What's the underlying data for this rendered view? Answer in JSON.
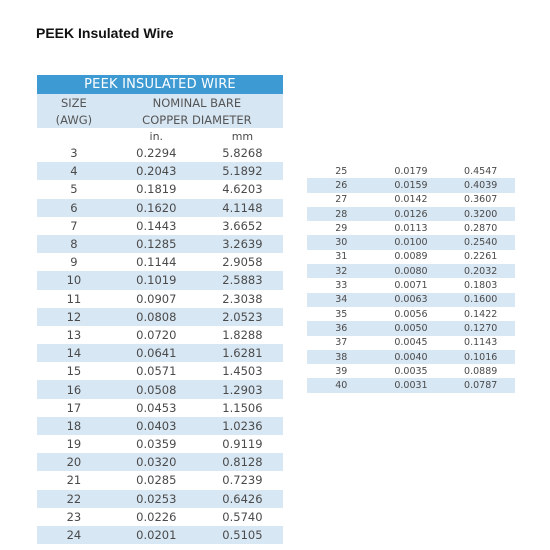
{
  "page_title": "PEEK Insulated Wire",
  "table": {
    "banner": "PEEK INSULATED WIRE",
    "size_header": [
      "SIZE",
      "(AWG)"
    ],
    "diameter_header": [
      "NOMINAL BARE",
      "COPPER DIAMETER"
    ],
    "unit_in": "in.",
    "unit_mm": "mm",
    "rows_left": [
      [
        "3",
        "0.2294",
        "5.8268"
      ],
      [
        "4",
        "0.2043",
        "5.1892"
      ],
      [
        "5",
        "0.1819",
        "4.6203"
      ],
      [
        "6",
        "0.1620",
        "4.1148"
      ],
      [
        "7",
        "0.1443",
        "3.6652"
      ],
      [
        "8",
        "0.1285",
        "3.2639"
      ],
      [
        "9",
        "0.1144",
        "2.9058"
      ],
      [
        "10",
        "0.1019",
        "2.5883"
      ],
      [
        "11",
        "0.0907",
        "2.3038"
      ],
      [
        "12",
        "0.0808",
        "2.0523"
      ],
      [
        "13",
        "0.0720",
        "1.8288"
      ],
      [
        "14",
        "0.0641",
        "1.6281"
      ],
      [
        "15",
        "0.0571",
        "1.4503"
      ],
      [
        "16",
        "0.0508",
        "1.2903"
      ],
      [
        "17",
        "0.0453",
        "1.1506"
      ],
      [
        "18",
        "0.0403",
        "1.0236"
      ],
      [
        "19",
        "0.0359",
        "0.9119"
      ],
      [
        "20",
        "0.0320",
        "0.8128"
      ],
      [
        "21",
        "0.0285",
        "0.7239"
      ],
      [
        "22",
        "0.0253",
        "0.6426"
      ],
      [
        "23",
        "0.0226",
        "0.5740"
      ],
      [
        "24",
        "0.0201",
        "0.5105"
      ]
    ],
    "rows_right": [
      [
        "25",
        "0.0179",
        "0.4547"
      ],
      [
        "26",
        "0.0159",
        "0.4039"
      ],
      [
        "27",
        "0.0142",
        "0.3607"
      ],
      [
        "28",
        "0.0126",
        "0.3200"
      ],
      [
        "29",
        "0.0113",
        "0.2870"
      ],
      [
        "30",
        "0.0100",
        "0.2540"
      ],
      [
        "31",
        "0.0089",
        "0.2261"
      ],
      [
        "32",
        "0.0080",
        "0.2032"
      ],
      [
        "33",
        "0.0071",
        "0.1803"
      ],
      [
        "34",
        "0.0063",
        "0.1600"
      ],
      [
        "35",
        "0.0056",
        "0.1422"
      ],
      [
        "36",
        "0.0050",
        "0.1270"
      ],
      [
        "37",
        "0.0045",
        "0.1143"
      ],
      [
        "38",
        "0.0040",
        "0.1016"
      ],
      [
        "39",
        "0.0035",
        "0.0889"
      ],
      [
        "40",
        "0.0031",
        "0.0787"
      ]
    ]
  },
  "colors": {
    "banner": "#3e9ad3",
    "shade": "#d8e7f4",
    "text": "#4a4a4a"
  }
}
